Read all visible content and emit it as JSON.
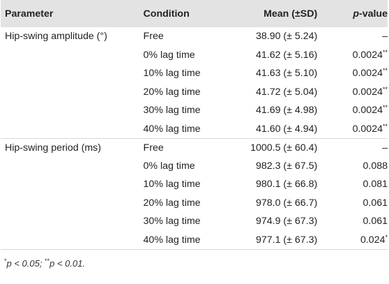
{
  "table": {
    "headers": {
      "parameter": "Parameter",
      "condition": "Condition",
      "mean": "Mean (±SD)",
      "p_prefix": "p",
      "p_suffix": "-value"
    },
    "rows": [
      {
        "parameter": "Hip-swing amplitude (°)",
        "condition": "Free",
        "mean": "38.90 (± 5.24)",
        "p": "–",
        "sig": ""
      },
      {
        "parameter": "",
        "condition": "0% lag time",
        "mean": "41.62 (± 5.16)",
        "p": "0.0024",
        "sig": "**"
      },
      {
        "parameter": "",
        "condition": "10% lag time",
        "mean": "41.63 (± 5.10)",
        "p": "0.0024",
        "sig": "**"
      },
      {
        "parameter": "",
        "condition": "20% lag time",
        "mean": "41.72 (± 5.04)",
        "p": "0.0024",
        "sig": "**"
      },
      {
        "parameter": "",
        "condition": "30% lag time",
        "mean": "41.69 (± 4.98)",
        "p": "0.0024",
        "sig": "**"
      },
      {
        "parameter": "",
        "condition": "40% lag time",
        "mean": "41.60 (± 4.94)",
        "p": "0.0024",
        "sig": "**"
      },
      {
        "parameter": "Hip-swing period (ms)",
        "condition": "Free",
        "mean": "1000.5 (± 60.4)",
        "p": "–",
        "sig": ""
      },
      {
        "parameter": "",
        "condition": "0% lag time",
        "mean": "982.3 (± 67.5)",
        "p": "0.088",
        "sig": ""
      },
      {
        "parameter": "",
        "condition": "10% lag time",
        "mean": "980.1 (± 66.8)",
        "p": "0.081",
        "sig": ""
      },
      {
        "parameter": "",
        "condition": "20% lag time",
        "mean": "978.0 (± 66.7)",
        "p": "0.061",
        "sig": ""
      },
      {
        "parameter": "",
        "condition": "30% lag time",
        "mean": "974.9 (± 67.3)",
        "p": "0.061",
        "sig": ""
      },
      {
        "parameter": "",
        "condition": "40% lag time",
        "mean": "977.1 (± 67.3)",
        "p": "0.024",
        "sig": "*"
      }
    ]
  },
  "footnote": {
    "sym1": "*",
    "text1": "p < 0.05; ",
    "sym2": "**",
    "text2": "p < 0.01."
  }
}
